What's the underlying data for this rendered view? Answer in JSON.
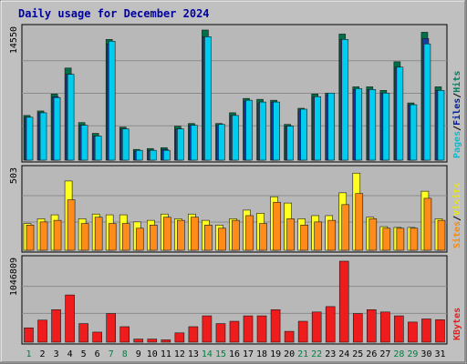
{
  "chart_data": {
    "type": "bar",
    "title": "Daily usage for December 2024",
    "days": [
      "1",
      "2",
      "3",
      "4",
      "5",
      "6",
      "7",
      "8",
      "9",
      "10",
      "11",
      "12",
      "13",
      "14",
      "15",
      "16",
      "17",
      "18",
      "19",
      "20",
      "21",
      "22",
      "23",
      "24",
      "25",
      "26",
      "27",
      "28",
      "29",
      "30",
      "31"
    ],
    "weekend_days": [
      "1",
      "7",
      "8",
      "14",
      "15",
      "21",
      "22",
      "28",
      "29"
    ],
    "panels": [
      {
        "id": "hits",
        "ymax_label": "14550",
        "ymax": 14550,
        "legend": [
          {
            "text": "Pages",
            "color": "#00c0d0"
          },
          {
            "text": "/",
            "color": "#000000"
          },
          {
            "text": "Files",
            "color": "#0020a0"
          },
          {
            "text": "/",
            "color": "#000000"
          },
          {
            "text": "Hits",
            "color": "#008060"
          }
        ],
        "series": [
          {
            "role": "Hits",
            "color": "#007048",
            "values": [
              5000,
              5500,
              7400,
              10300,
              4200,
              3000,
              13500,
              3700,
              1200,
              1300,
              1400,
              3800,
              4100,
              14550,
              4100,
              5300,
              6900,
              6800,
              6700,
              4000,
              5800,
              7400,
              7500,
              14100,
              8200,
              8200,
              7800,
              11000,
              6400,
              14300,
              8200
            ]
          },
          {
            "role": "Files",
            "color": "#1c3c9c",
            "values": [
              4800,
              5300,
              7100,
              9600,
              3900,
              2700,
              13000,
              3500,
              1000,
              1100,
              1200,
              3500,
              3900,
              13800,
              3900,
              5000,
              6600,
              6400,
              6500,
              3800,
              5600,
              7100,
              7300,
              13500,
              7900,
              7900,
              7500,
              10400,
              6200,
              13600,
              7800
            ]
          },
          {
            "role": "Pages",
            "color": "#00ccee",
            "values": [
              4800,
              5300,
              7000,
              9600,
              3900,
              2700,
              13300,
              3500,
              1100,
              1100,
              1100,
              3500,
              3900,
              13800,
              4000,
              5000,
              6700,
              6500,
              6500,
              3800,
              5700,
              7100,
              7500,
              13500,
              8000,
              7900,
              7500,
              10400,
              6200,
              13000,
              7800
            ]
          }
        ]
      },
      {
        "id": "visits",
        "ymax_label": "503",
        "ymax": 503,
        "legend": [
          {
            "text": "Sites",
            "color": "#ff8800"
          },
          {
            "text": "/",
            "color": "#000000"
          },
          {
            "text": "Visits",
            "color": "#e8e800"
          }
        ],
        "series": [
          {
            "role": "Visits",
            "color": "#ffff20",
            "values": [
              170,
              200,
              225,
              440,
              200,
              230,
              225,
              225,
              180,
              190,
              230,
              200,
              230,
              190,
              160,
              200,
              255,
              235,
              340,
              300,
              200,
              220,
              220,
              365,
              490,
              210,
              150,
              145,
              145,
              375,
              200
            ]
          },
          {
            "role": "Sites",
            "color": "#ff8c1a",
            "values": [
              160,
              180,
              190,
              320,
              170,
              210,
              170,
              170,
              140,
              160,
              210,
              190,
              210,
              160,
              140,
              190,
              220,
              170,
              305,
              200,
              160,
              180,
              190,
              290,
              360,
              200,
              140,
              140,
              140,
              330,
              190
            ]
          }
        ]
      },
      {
        "id": "kbytes",
        "ymax_label": "1046809",
        "ymax": 1046809,
        "legend": [
          {
            "text": "KBytes",
            "color": "#e81c1c"
          }
        ],
        "series": [
          {
            "role": "KBytes",
            "color": "#ee1c1c",
            "values": [
              185000,
              285000,
              420000,
              610000,
              240000,
              130000,
              370000,
              200000,
              40000,
              40000,
              30000,
              120000,
              200000,
              340000,
              240000,
              270000,
              340000,
              340000,
              420000,
              140000,
              270000,
              390000,
              460000,
              1046809,
              370000,
              420000,
              390000,
              340000,
              260000,
              300000,
              290000
            ]
          }
        ]
      }
    ]
  }
}
